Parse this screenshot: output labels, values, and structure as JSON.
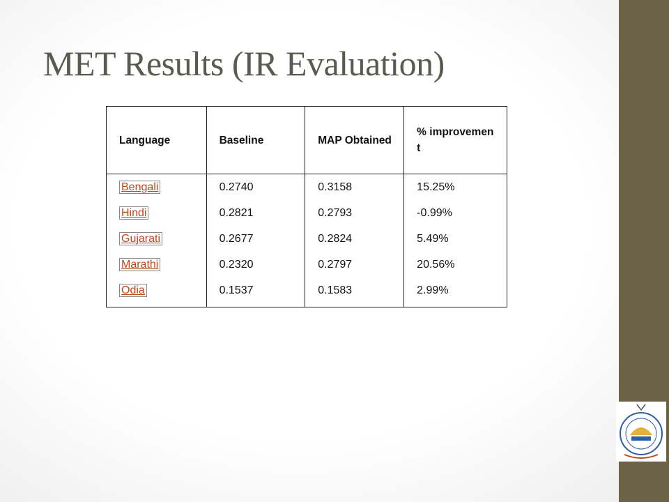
{
  "title": "MET Results (IR Evaluation)",
  "table": {
    "header": [
      "Language",
      "Baseline",
      "MAP Obtained",
      "% improvement"
    ],
    "rows": [
      [
        "Bengali",
        "0.2740",
        "0.3158",
        "15.25%"
      ],
      [
        "Hindi",
        "0.2821",
        "0.2793",
        "-0.99%"
      ],
      [
        "Gujarati",
        "0.2677",
        "0.2824",
        "5.49%"
      ],
      [
        "Marathi",
        "0.2320",
        "0.2797",
        "20.56%"
      ],
      [
        "Odia",
        "0.1537",
        "0.1583",
        "2.99%"
      ]
    ]
  }
}
